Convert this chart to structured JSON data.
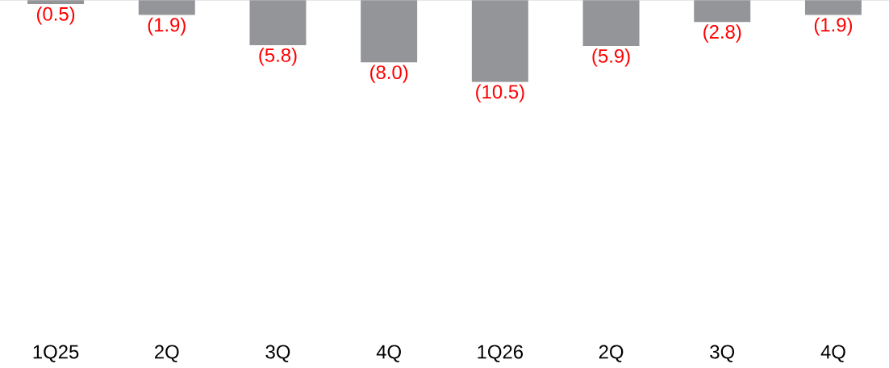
{
  "chart_data": {
    "type": "bar",
    "categories": [
      "1Q25",
      "2Q",
      "3Q",
      "4Q",
      "1Q26",
      "2Q",
      "3Q",
      "4Q"
    ],
    "values": [
      -0.5,
      -1.9,
      -5.8,
      -8.0,
      -10.5,
      -5.9,
      -2.8,
      -1.9
    ],
    "value_labels": [
      "(0.5)",
      "(1.9)",
      "(5.8)",
      "(8.0)",
      "(10.5)",
      "(5.9)",
      "(2.8)",
      "(1.9)"
    ],
    "color": "#939598"
  }
}
